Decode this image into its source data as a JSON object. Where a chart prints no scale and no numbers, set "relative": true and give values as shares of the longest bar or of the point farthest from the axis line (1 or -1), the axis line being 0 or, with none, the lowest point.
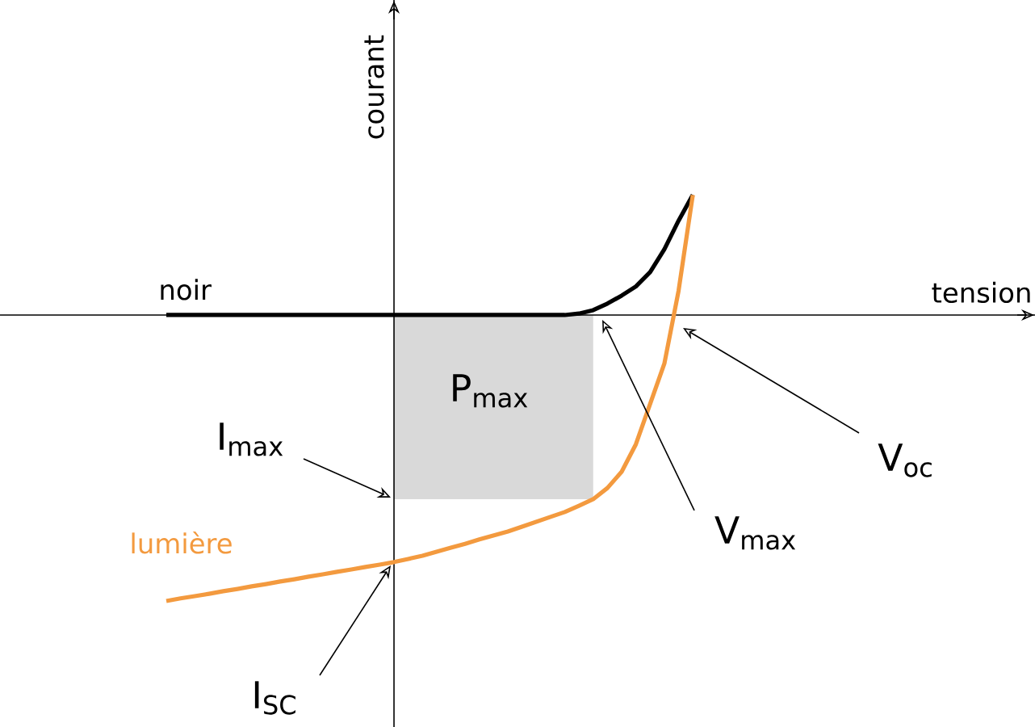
{
  "chart_data": {
    "type": "line",
    "relative": true,
    "ylabel": "courant",
    "categories": [
      null,
      null,
      null,
      null,
      null,
      null,
      null,
      null,
      null,
      null,
      null,
      null,
      null,
      null,
      null,
      null,
      null,
      null,
      null,
      null,
      null,
      null,
      null,
      null,
      null,
      null,
      null,
      null,
      null,
      null,
      null,
      null,
      null,
      null,
      null,
      null,
      null,
      null
    ],
    "series": [
      {
        "name": "noir",
        "color": "#000000",
        "values": [
          0,
          0,
          0,
          0,
          0,
          0,
          0,
          0,
          0,
          0,
          0,
          0,
          0,
          0,
          0,
          0,
          0,
          0,
          0,
          0,
          0,
          0,
          0,
          0,
          0,
          0,
          0,
          0,
          0,
          0.005,
          0.017,
          0.04,
          0.068,
          0.1,
          0.15,
          0.23,
          0.33,
          0.42
        ]
      },
      {
        "name": "lumière",
        "color": "#f39a3f",
        "values": [
          -1.0,
          -0.991,
          -0.983,
          -0.975,
          -0.966,
          -0.958,
          -0.949,
          -0.941,
          -0.932,
          -0.924,
          -0.915,
          -0.907,
          -0.898,
          -0.89,
          -0.881,
          -0.873,
          -0.864,
          -0.853,
          -0.842,
          -0.828,
          -0.814,
          -0.8,
          -0.785,
          -0.771,
          -0.757,
          -0.74,
          -0.723,
          -0.706,
          -0.689,
          -0.667,
          -0.644,
          -0.605,
          -0.548,
          -0.452,
          -0.311,
          -0.17,
          0.085,
          0.42
        ]
      }
    ],
    "annotations": [
      "P$_{max}$",
      "I$_{max}$",
      "I$_{SC}$",
      "V$_{max}$",
      "V$_{oc}$",
      "tension"
    ]
  }
}
